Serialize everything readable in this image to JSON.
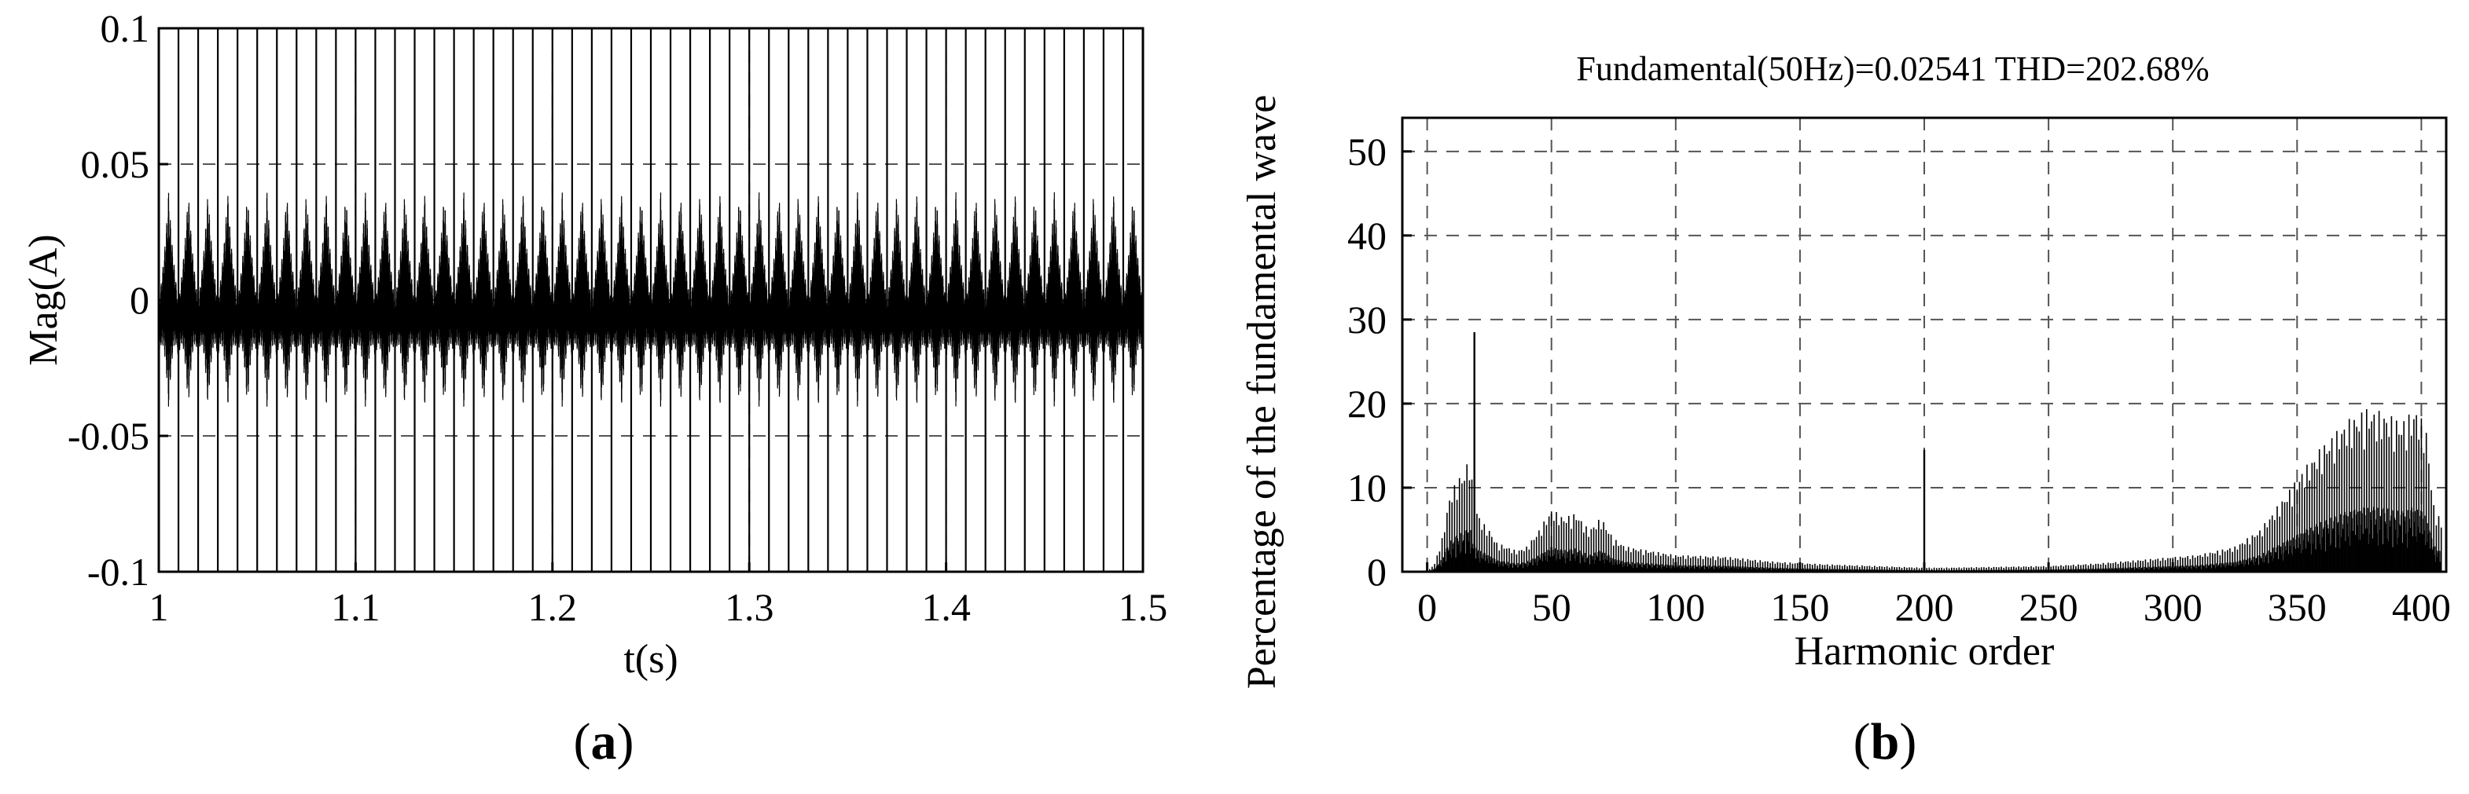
{
  "chart_data": [
    {
      "type": "line",
      "panel_label": "a",
      "title": "",
      "xlabel": "t(s)",
      "ylabel": "Mag(A)",
      "xlim": [
        1,
        1.5
      ],
      "ylim": [
        -0.1,
        0.1
      ],
      "x_ticks": [
        1,
        1.1,
        1.2,
        1.3,
        1.4,
        1.5
      ],
      "x_tick_labels": [
        "1",
        "1.1",
        "1.2",
        "1.3",
        "1.4",
        "1.5"
      ],
      "y_ticks": [
        -0.1,
        -0.05,
        0,
        0.05,
        0.1
      ],
      "y_tick_labels": [
        "-0.1",
        "-0.05",
        "0",
        "0.05",
        "0.1"
      ],
      "grid": true,
      "series": [
        {
          "color": "#000000",
          "fundamental_hz": 50,
          "peak_amplitude": 0.04,
          "spike_amplitude": 0.1,
          "spike_times": [
            1.0,
            1.01,
            1.02,
            1.03,
            1.04,
            1.05,
            1.06,
            1.07,
            1.08,
            1.09,
            1.1,
            1.11,
            1.12,
            1.13,
            1.14,
            1.15,
            1.16,
            1.17,
            1.18,
            1.19,
            1.2,
            1.21,
            1.22,
            1.23,
            1.24,
            1.25,
            1.26,
            1.27,
            1.28,
            1.29,
            1.3,
            1.31,
            1.32,
            1.33,
            1.34,
            1.35,
            1.36,
            1.37,
            1.38,
            1.39,
            1.4,
            1.41,
            1.42,
            1.43,
            1.44,
            1.45,
            1.46,
            1.47,
            1.48,
            1.49,
            1.5
          ]
        }
      ]
    },
    {
      "type": "bar",
      "panel_label": "b",
      "title": "Fundamental(50Hz)=0.02541   THD=202.68%",
      "xlabel": "Harmonic order",
      "ylabel": "Percentage of the fundamental wave",
      "xlim": [
        -10,
        410
      ],
      "ylim": [
        0,
        54
      ],
      "x_ticks": [
        0,
        50,
        100,
        150,
        200,
        250,
        300,
        350,
        400
      ],
      "x_tick_labels": [
        "0",
        "50",
        "100",
        "150",
        "200",
        "250",
        "300",
        "350",
        "400"
      ],
      "y_ticks": [
        0,
        10,
        20,
        30,
        40,
        50
      ],
      "y_tick_labels": [
        "0",
        "10",
        "20",
        "30",
        "40",
        "50"
      ],
      "grid": true,
      "color": "#000000",
      "envelope": [
        [
          0,
          0
        ],
        [
          3,
          1
        ],
        [
          6,
          4
        ],
        [
          9,
          9
        ],
        [
          12,
          11
        ],
        [
          15,
          12
        ],
        [
          17,
          14
        ],
        [
          19,
          8
        ],
        [
          22,
          6
        ],
        [
          25,
          5
        ],
        [
          28,
          3.5
        ],
        [
          32,
          3
        ],
        [
          36,
          2.5
        ],
        [
          40,
          3
        ],
        [
          45,
          5
        ],
        [
          50,
          7.5
        ],
        [
          55,
          6.5
        ],
        [
          60,
          7
        ],
        [
          65,
          5
        ],
        [
          70,
          6.5
        ],
        [
          75,
          4
        ],
        [
          80,
          3
        ],
        [
          90,
          2.5
        ],
        [
          100,
          2
        ],
        [
          120,
          1.8
        ],
        [
          140,
          1.2
        ],
        [
          160,
          0.9
        ],
        [
          180,
          0.7
        ],
        [
          199,
          0.5
        ],
        [
          210,
          0.5
        ],
        [
          230,
          0.6
        ],
        [
          250,
          0.7
        ],
        [
          270,
          1
        ],
        [
          290,
          1.5
        ],
        [
          310,
          2
        ],
        [
          325,
          3
        ],
        [
          335,
          5
        ],
        [
          345,
          9
        ],
        [
          352,
          12
        ],
        [
          360,
          15
        ],
        [
          370,
          18
        ],
        [
          378,
          19.5
        ],
        [
          385,
          19
        ],
        [
          392,
          18
        ],
        [
          398,
          19.5
        ],
        [
          402,
          17
        ],
        [
          405,
          8
        ],
        [
          408,
          6
        ]
      ],
      "peaks": [
        {
          "x": 19,
          "y": 28.5
        },
        {
          "x": 200,
          "y": 14.5
        }
      ]
    }
  ]
}
